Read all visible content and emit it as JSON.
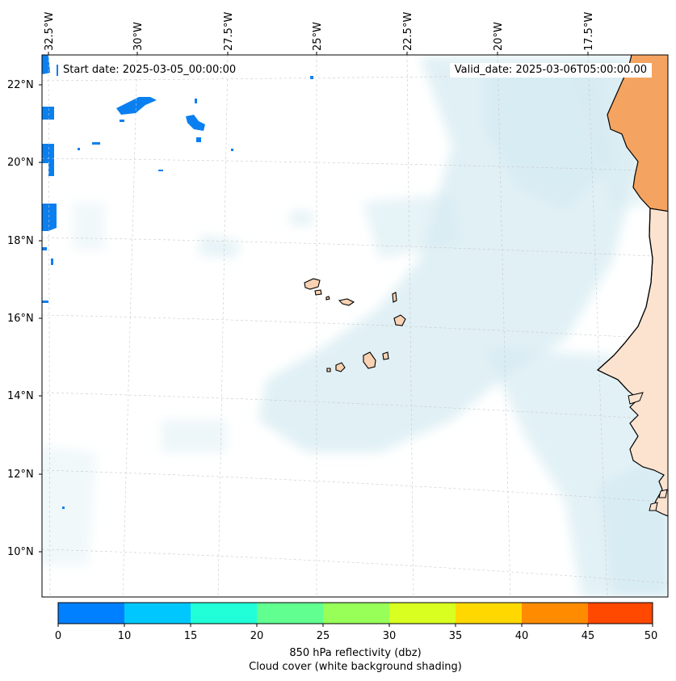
{
  "map": {
    "start_date": "Start date: 2025-03-05_00:00:00",
    "valid_date": "Valid_date: 2025-03-06T05:00:00.00",
    "lat_labels": [
      "22°N",
      "20°N",
      "18°N",
      "16°N",
      "14°N",
      "12°N",
      "10°N"
    ],
    "lon_labels": [
      "32.5°W",
      "30°W",
      "27.5°W",
      "25°W",
      "22.5°W",
      "20°W",
      "17.5°W"
    ],
    "land_colors": {
      "africa_north": "#f4a460",
      "africa_south": "#fbe3cf",
      "islands": "#f9d2b2"
    },
    "cloud_color": "#d6ebf2",
    "reflectivity_color": "#0a7ff0"
  },
  "colorbar": {
    "ticks": [
      "0",
      "10",
      "15",
      "20",
      "25",
      "30",
      "35",
      "40",
      "45",
      "50"
    ],
    "colors": [
      "#0080ff",
      "#00c8ff",
      "#20ffd8",
      "#60ff90",
      "#98ff58",
      "#d8ff20",
      "#ffd800",
      "#ff8c00",
      "#ff4800"
    ],
    "label": "850 hPa reflectivity (dbz)",
    "sublabel": "Cloud cover (white background shading)"
  }
}
